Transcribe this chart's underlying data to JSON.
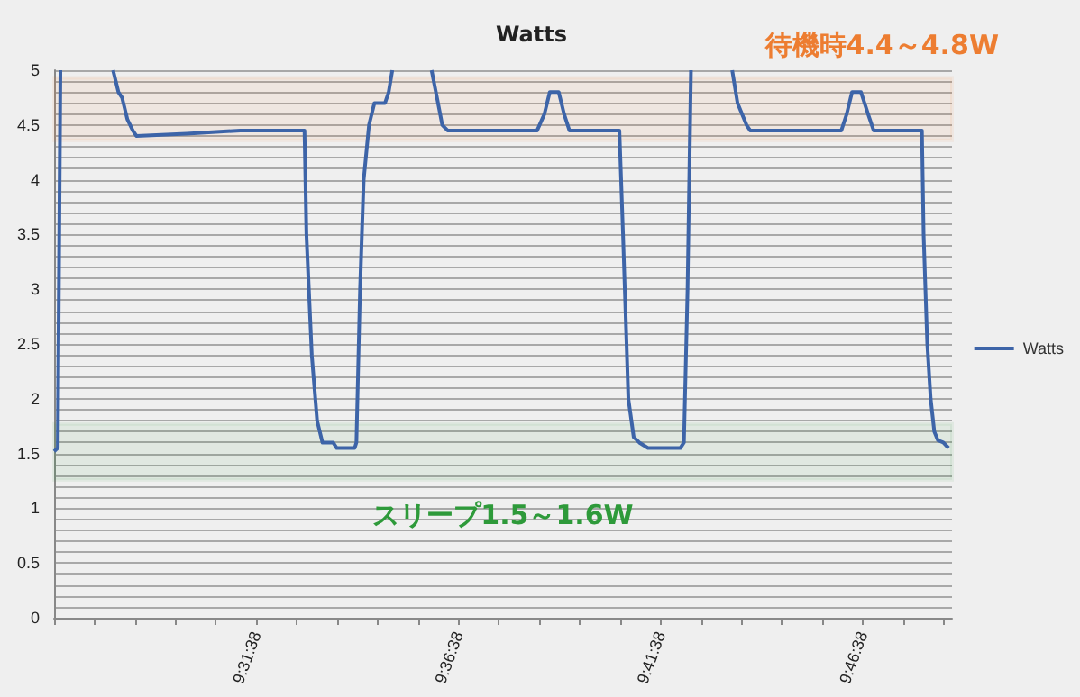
{
  "chart_data": {
    "type": "line",
    "title": "Watts",
    "x": [
      9.4439,
      9.4454,
      9.4465,
      9.4579,
      9.4682,
      9.4704,
      9.4719,
      9.4741,
      9.4763,
      9.4778,
      9.4985,
      9.5206,
      9.5471,
      9.5479,
      9.5501,
      9.5523,
      9.5545,
      9.5589,
      9.5604,
      9.5678,
      9.5685,
      9.57,
      9.5715,
      9.5737,
      9.5759,
      9.5803,
      9.5818,
      9.5833,
      9.5914,
      9.5995,
      9.6017,
      9.6039,
      9.6061,
      9.643,
      9.646,
      9.6482,
      9.6519,
      9.6541,
      9.6563,
      9.6769,
      9.6784,
      9.6806,
      9.6828,
      9.6851,
      9.6887,
      9.702,
      9.7035,
      9.705,
      9.7064,
      9.7145,
      9.7234,
      9.7256,
      9.7293,
      9.7308,
      9.7684,
      9.7706,
      9.7728,
      9.7765,
      9.7794,
      9.7817,
      9.8016,
      9.8023,
      9.8038,
      9.8052,
      9.8067,
      9.8082,
      9.8104,
      9.8126
    ],
    "series": [
      {
        "name": "Watts",
        "color": "#3d64a8",
        "values": [
          1.52,
          1.55,
          5.0,
          null,
          5.0,
          4.8,
          4.75,
          4.55,
          4.45,
          4.4,
          4.42,
          4.45,
          4.45,
          3.5,
          2.4,
          1.8,
          1.6,
          1.6,
          1.55,
          1.55,
          1.6,
          3.0,
          4.0,
          4.5,
          4.7,
          4.7,
          4.8,
          5.0,
          null,
          5.0,
          4.75,
          4.5,
          4.45,
          4.45,
          4.6,
          4.8,
          4.8,
          4.6,
          4.45,
          4.45,
          3.5,
          2.0,
          1.65,
          1.6,
          1.55,
          1.55,
          1.6,
          3.0,
          5.0,
          null,
          5.0,
          4.7,
          4.5,
          4.45,
          4.45,
          4.6,
          4.8,
          4.8,
          4.6,
          4.45,
          4.45,
          3.5,
          2.5,
          2.0,
          1.7,
          1.62,
          1.6,
          1.55
        ]
      }
    ],
    "xlim": [
      9.443889,
      9.814
    ],
    "xticks": [
      {
        "value": 9.443889,
        "label": null
      },
      {
        "value": 9.460556,
        "label": null
      },
      {
        "value": 9.477222,
        "label": null
      },
      {
        "value": 9.493889,
        "label": null
      },
      {
        "value": 9.510556,
        "label": null
      },
      {
        "value": 9.527222,
        "label": "9:31:38"
      },
      {
        "value": 9.543889,
        "label": null
      },
      {
        "value": 9.560556,
        "label": null
      },
      {
        "value": 9.577222,
        "label": null
      },
      {
        "value": 9.593889,
        "label": null
      },
      {
        "value": 9.610556,
        "label": "9:36:38"
      },
      {
        "value": 9.627222,
        "label": null
      },
      {
        "value": 9.643889,
        "label": null
      },
      {
        "value": 9.660556,
        "label": null
      },
      {
        "value": 9.677222,
        "label": null
      },
      {
        "value": 9.693889,
        "label": "9:41:38"
      },
      {
        "value": 9.710556,
        "label": null
      },
      {
        "value": 9.727222,
        "label": null
      },
      {
        "value": 9.743889,
        "label": null
      },
      {
        "value": 9.760556,
        "label": null
      },
      {
        "value": 9.777222,
        "label": "9:46:38"
      },
      {
        "value": 9.793889,
        "label": null
      },
      {
        "value": 9.810556,
        "label": null
      }
    ],
    "ylim": [
      0,
      5
    ],
    "yticks": [
      0,
      {
        "value": 0.1,
        "label": null
      },
      {
        "value": 0.2,
        "label": null
      },
      {
        "value": 0.3,
        "label": null
      },
      {
        "value": 0.4,
        "label": null
      },
      0.5,
      {
        "value": 0.6,
        "label": null
      },
      {
        "value": 0.7,
        "label": null
      },
      {
        "value": 0.8,
        "label": null
      },
      {
        "value": 0.9,
        "label": null
      },
      1,
      {
        "value": 1.1,
        "label": null
      },
      {
        "value": 1.2,
        "label": null
      },
      {
        "value": 1.3,
        "label": null
      },
      {
        "value": 1.4,
        "label": null
      },
      1.5,
      {
        "value": 1.6,
        "label": null
      },
      {
        "value": 1.7,
        "label": null
      },
      {
        "value": 1.8,
        "label": null
      },
      {
        "value": 1.9,
        "label": null
      },
      2,
      {
        "value": 2.1,
        "label": null
      },
      {
        "value": 2.2,
        "label": null
      },
      {
        "value": 2.3,
        "label": null
      },
      {
        "value": 2.4,
        "label": null
      },
      2.5,
      {
        "value": 2.6,
        "label": null
      },
      {
        "value": 2.7,
        "label": null
      },
      {
        "value": 2.8,
        "label": null
      },
      {
        "value": 2.9,
        "label": null
      },
      3,
      {
        "value": 3.1,
        "label": null
      },
      {
        "value": 3.2,
        "label": null
      },
      {
        "value": 3.3,
        "label": null
      },
      {
        "value": 3.4,
        "label": null
      },
      3.5,
      {
        "value": 3.6,
        "label": null
      },
      {
        "value": 3.7,
        "label": null
      },
      {
        "value": 3.8,
        "label": null
      },
      {
        "value": 3.9,
        "label": null
      },
      4,
      {
        "value": 4.1,
        "label": null
      },
      {
        "value": 4.2,
        "label": null
      },
      {
        "value": 4.3,
        "label": null
      },
      {
        "value": 4.4,
        "label": null
      },
      4.5,
      {
        "value": 4.6,
        "label": null
      },
      {
        "value": 4.7,
        "label": null
      },
      {
        "value": 4.8,
        "label": null
      },
      {
        "value": 4.9,
        "label": null
      },
      5
    ],
    "bands": [
      {
        "axis": "y",
        "from": 4.36,
        "to": 4.93,
        "label": "待機時4.4～4.8W",
        "color": "#ed7d31"
      },
      {
        "axis": "y",
        "from": 1.26,
        "to": 1.77,
        "label": "スリープ1.5～1.6W",
        "color": "#2e9a3a"
      }
    ],
    "grid": "y",
    "legend": "right",
    "marker": "none",
    "line_style": "solid"
  }
}
